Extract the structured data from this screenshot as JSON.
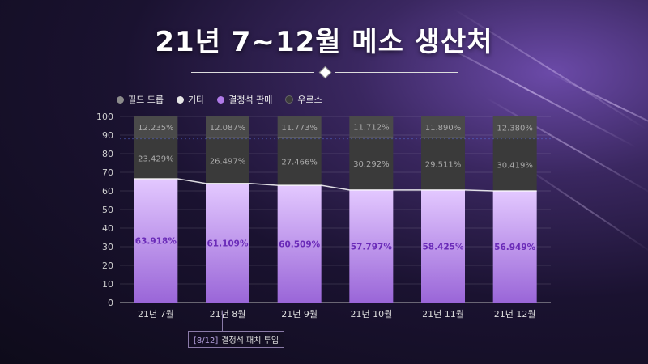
{
  "title": "21년 7~12월 메소 생산처",
  "legend": [
    {
      "label": "필드 드롭",
      "color": "#8a8a8a"
    },
    {
      "label": "기타",
      "color": "#e6e6e6"
    },
    {
      "label": "결정석 판매",
      "color": "#b07ae8"
    },
    {
      "label": "우르스",
      "color": "#3c3c3c"
    }
  ],
  "annotation": {
    "tag": "[8/12]",
    "text": "결정석 패치 투입"
  },
  "chart_data": {
    "type": "bar",
    "stacked": true,
    "categories": [
      "21년 7월",
      "21년 8월",
      "21년 9월",
      "21년 10월",
      "21년 11월",
      "21년 12월"
    ],
    "ylim": [
      0,
      100
    ],
    "yticks": [
      0,
      10,
      20,
      30,
      40,
      50,
      60,
      70,
      80,
      90,
      100
    ],
    "series": [
      {
        "name": "결정석 판매",
        "color": "#b07ae8",
        "values": [
          63.918,
          61.109,
          60.509,
          57.797,
          58.425,
          56.949
        ],
        "labels": [
          "63.918%",
          "61.109%",
          "60.509%",
          "57.797%",
          "58.425%",
          "56.949%"
        ]
      },
      {
        "name": "기타",
        "color": "#3a3a3a",
        "values": [
          23.429,
          26.497,
          27.466,
          30.292,
          29.511,
          30.419
        ],
        "labels": [
          "23.429%",
          "26.497%",
          "27.466%",
          "30.292%",
          "29.511%",
          "30.419%"
        ]
      },
      {
        "name": "필드 드롭",
        "color": "#4a4a4a",
        "values": [
          12.235,
          12.087,
          11.773,
          11.712,
          11.89,
          12.38
        ],
        "labels": [
          "12.235%",
          "12.087%",
          "11.773%",
          "11.712%",
          "11.890%",
          "12.380%"
        ]
      }
    ],
    "bar_tops": [
      66.5,
      64.0,
      63.0,
      60.5,
      60.5,
      60.0
    ]
  }
}
